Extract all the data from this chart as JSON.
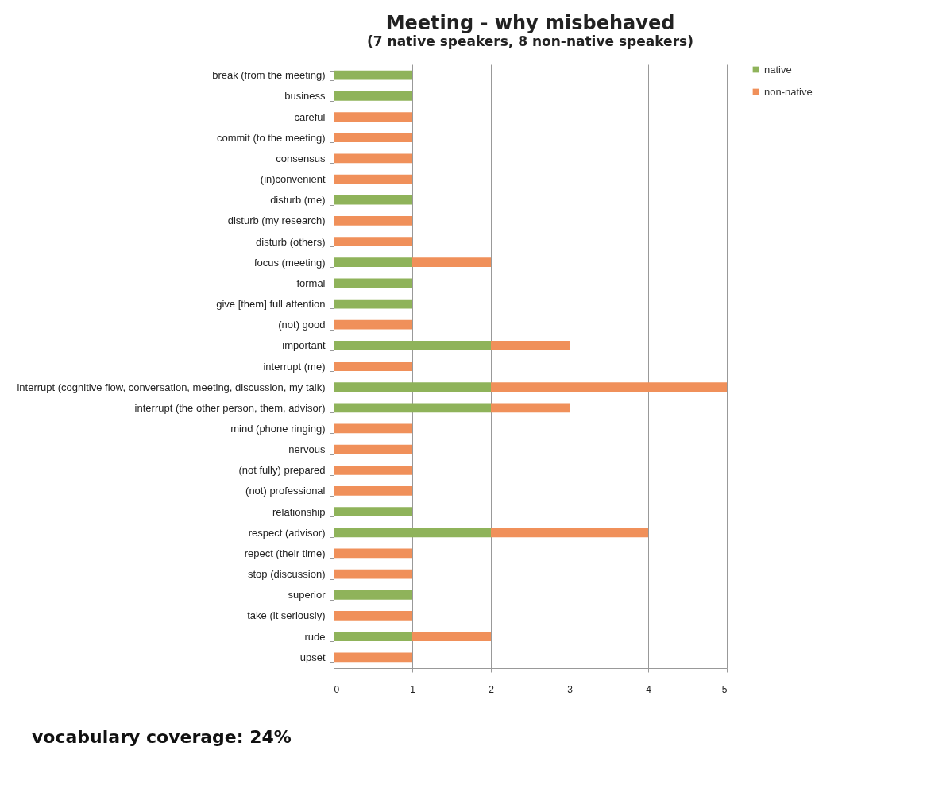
{
  "chart_data": {
    "type": "bar",
    "orientation": "horizontal",
    "stacked": true,
    "title": "Meeting - why misbehaved",
    "subtitle": "(7 native speakers, 8 non-native speakers)",
    "categories": [
      "break (from the meeting)",
      "business",
      "careful",
      "commit (to the meeting)",
      "consensus",
      "(in)convenient",
      "disturb (me)",
      "disturb (my research)",
      "disturb (others)",
      "focus (meeting)",
      "formal",
      "give [them] full attention",
      "(not) good",
      "important",
      "interrupt (me)",
      "interrupt (cognitive flow, conversation, meeting, discussion, my talk)",
      "interrupt (the other person, them, advisor)",
      "mind (phone ringing)",
      "nervous",
      "(not fully) prepared",
      "(not) professional",
      "relationship",
      "respect (advisor)",
      "repect (their time)",
      "stop (discussion)",
      "superior",
      "take (it seriously)",
      "rude",
      "upset"
    ],
    "series": [
      {
        "name": "native",
        "color": "#8fb35a",
        "values": [
          1,
          1,
          null,
          null,
          null,
          null,
          1,
          null,
          null,
          1,
          1,
          1,
          null,
          2,
          null,
          2,
          2,
          null,
          null,
          null,
          null,
          1,
          2,
          null,
          null,
          1,
          null,
          1,
          null
        ]
      },
      {
        "name": "non-native",
        "color": "#f0905a",
        "values": [
          null,
          null,
          1,
          1,
          1,
          1,
          null,
          1,
          1,
          1,
          null,
          null,
          1,
          1,
          1,
          3,
          1,
          1,
          1,
          1,
          1,
          null,
          2,
          1,
          1,
          null,
          1,
          1,
          1
        ]
      }
    ],
    "xlim": [
      0,
      5
    ],
    "xticks": [
      0,
      1,
      2,
      3,
      4,
      5
    ],
    "grid": "x",
    "legend": "right",
    "annotations": [
      "vocabulary coverage: 24%"
    ]
  }
}
